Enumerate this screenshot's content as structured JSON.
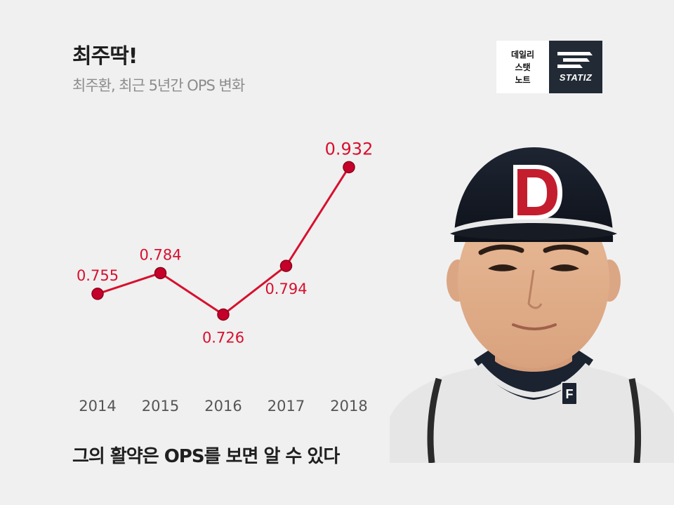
{
  "header": {
    "title": "최주딱!",
    "subtitle": "최주환, 최근 5년간 OPS 변화"
  },
  "brand": {
    "line1": "데일리",
    "line2": "스탯",
    "line3": "노트",
    "name": "STATIZ"
  },
  "caption": "그의 활약은 OPS를 보면 알 수 있다",
  "colors": {
    "line": "#d7102e",
    "point_fill": "#c5002a",
    "point_stroke": "#8a0018",
    "label": "#d7102e",
    "axis_label": "#555555"
  },
  "chart_data": {
    "type": "line",
    "categories": [
      "2014",
      "2015",
      "2016",
      "2017",
      "2018"
    ],
    "values": [
      0.755,
      0.784,
      0.726,
      0.794,
      0.932
    ],
    "data_labels": [
      "0.755",
      "0.784",
      "0.726",
      "0.794",
      "0.932"
    ],
    "label_positions": [
      "above",
      "above",
      "below",
      "below",
      "above"
    ],
    "grid": false
  }
}
